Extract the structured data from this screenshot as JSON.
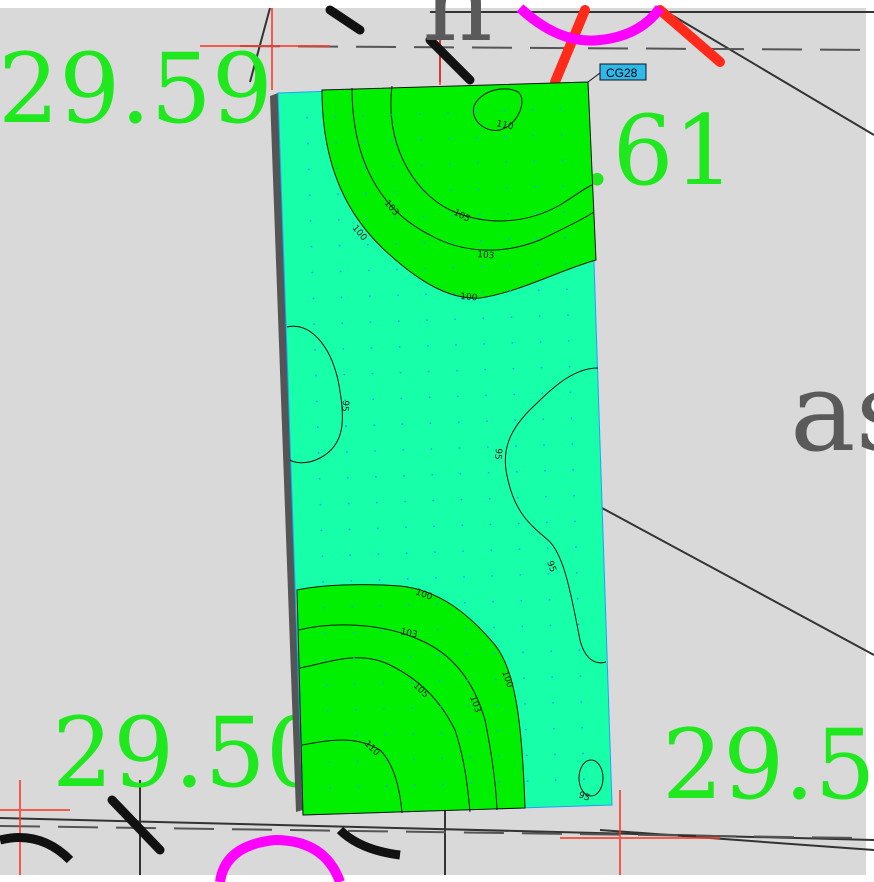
{
  "map": {
    "colors": {
      "background": "#d9d9d9",
      "sheet": "#ffffff",
      "low_zone": "#18ffaa",
      "high_zone": "#00f000",
      "elevation_text": "#1fe81f",
      "circle": "#ff00ff",
      "cross": "#ff2a1a",
      "tag_fill": "#2fb8ea"
    },
    "spot_elevations": [
      "29.59",
      ".61",
      "29.50",
      "29.5"
    ],
    "background_text": "as",
    "partial_label": "n",
    "tag": "CG28",
    "contour_labels": {
      "c110_top": "110",
      "c105_top": "105",
      "c103_top_a": "103",
      "c103_top_b": "103",
      "c100_top_a": "100",
      "c100_top_b": "100",
      "c95_left": "95",
      "c95_mid": "95",
      "c95_right": "95",
      "c100_bottom_a": "100",
      "c100_bottom_b": "100",
      "c103_bottom_a": "103",
      "c103_bottom_b": "103",
      "c105_bottom": "105",
      "c110_bottom": "110",
      "c95_corner": "95"
    }
  }
}
